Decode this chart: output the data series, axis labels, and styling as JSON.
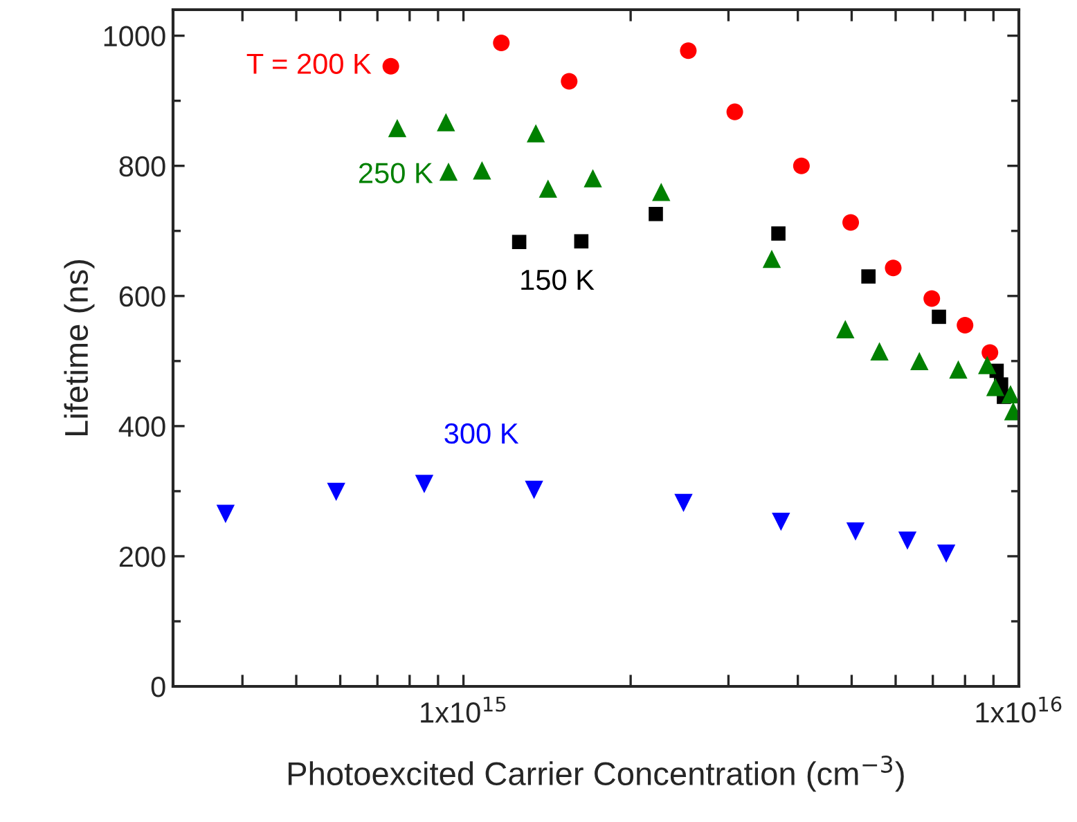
{
  "chart_data": {
    "type": "scatter",
    "xlabel": "Photoexcited Carrier Concentration (cm$^{−3}$)",
    "ylabel": "Lifetime (ns)",
    "log": "x",
    "xlim": [
      300000000000000.0,
      1e+16
    ],
    "xticks": [
      {
        "value": 400000000000000.0,
        "label": null
      },
      {
        "value": 500000000000000.0,
        "label": null
      },
      {
        "value": 600000000000000.0,
        "label": null
      },
      {
        "value": 700000000000000.0,
        "label": null
      },
      {
        "value": 800000000000000.0,
        "label": null
      },
      {
        "value": 900000000000000.0,
        "label": null
      },
      {
        "value": 1000000000000000.0,
        "label": "1x10$^{15}$"
      },
      {
        "value": 2000000000000000.0,
        "label": null
      },
      {
        "value": 3000000000000000.0,
        "label": null
      },
      {
        "value": 4000000000000000.0,
        "label": null
      },
      {
        "value": 5000000000000000.0,
        "label": null
      },
      {
        "value": 6000000000000000.0,
        "label": null
      },
      {
        "value": 7000000000000000.0,
        "label": null
      },
      {
        "value": 8000000000000000.0,
        "label": null
      },
      {
        "value": 9000000000000000.0,
        "label": null
      },
      {
        "value": 1e+16,
        "label": "1x10$^{16}$"
      }
    ],
    "ylim": [
      0,
      1040
    ],
    "yticks": [
      0,
      {
        "value": 100,
        "label": null
      },
      200,
      {
        "value": 300,
        "label": null
      },
      400,
      {
        "value": 500,
        "label": null
      },
      600,
      {
        "value": 700,
        "label": null
      },
      800,
      {
        "value": 900,
        "label": null
      },
      1000
    ],
    "grid": false,
    "legend": false,
    "series": [
      {
        "name": "T = 200 K",
        "color": "#ff0000",
        "marker": "circle",
        "x": [
          740000000000000.0,
          1170000000000000.0,
          1550000000000000.0,
          2540000000000000.0,
          3080000000000000.0,
          4060000000000000.0,
          4980000000000000.0,
          5940000000000000.0,
          6970000000000000.0,
          8000000000000000.0,
          8870000000000000.0
        ],
        "values": [
          953,
          989,
          930,
          977,
          883,
          800,
          713,
          643,
          596,
          555,
          513
        ]
      },
      {
        "name": "150 K",
        "color": "#000000",
        "marker": "square",
        "x": [
          1260000000000000.0,
          1630000000000000.0,
          2220000000000000.0,
          3690000000000000.0,
          5360000000000000.0,
          7180000000000000.0,
          9120000000000000.0,
          9290000000000000.0,
          9400000000000000.0
        ],
        "values": [
          683,
          684,
          726,
          696,
          630,
          568,
          485,
          464,
          445
        ]
      },
      {
        "name": "250 K",
        "color": "#008000",
        "marker": "triangle",
        "x": [
          760000000000000.0,
          930000000000000.0,
          940000000000000.0,
          1080000000000000.0,
          1350000000000000.0,
          1420000000000000.0,
          1710000000000000.0,
          2270000000000000.0,
          3590000000000000.0,
          4870000000000000.0,
          5610000000000000.0,
          6620000000000000.0,
          7780000000000000.0,
          8770000000000000.0,
          9070000000000000.0,
          9660000000000000.0,
          9770000000000000.0
        ],
        "values": [
          858,
          867,
          791,
          793,
          850,
          765,
          781,
          760,
          657,
          549,
          515,
          500,
          487,
          494,
          460,
          449,
          423
        ]
      },
      {
        "name": "300 K",
        "color": "#0000ff",
        "marker": "triangle_down",
        "x": [
          373000000000000.0,
          590000000000000.0,
          850000000000000.0,
          1340000000000000.0,
          2490000000000000.0,
          3730000000000000.0,
          5080000000000000.0,
          6300000000000000.0,
          7400000000000000.0
        ],
        "values": [
          265,
          299,
          311,
          302,
          282,
          253,
          238,
          224,
          204
        ]
      }
    ]
  }
}
